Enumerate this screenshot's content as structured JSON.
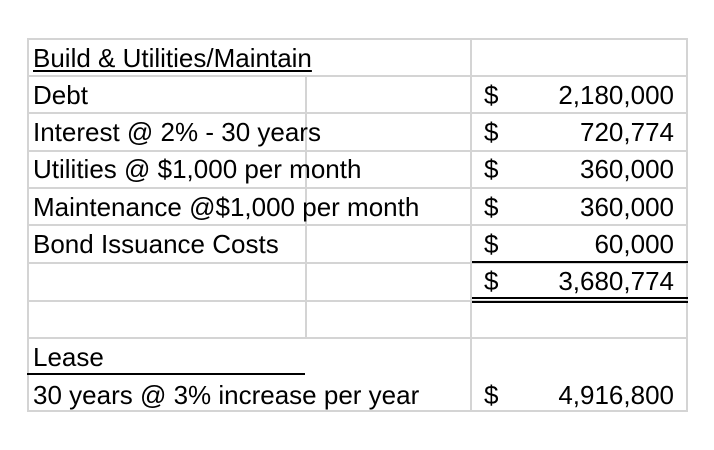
{
  "table": {
    "header": "Build & Utilities/Maintain",
    "rows": [
      {
        "label": "Debt",
        "currency": "$",
        "amount": "2,180,000"
      },
      {
        "label": "Interest @  2% - 30 years",
        "currency": "$",
        "amount": "720,774"
      },
      {
        "label": "Utilities @ $1,000 per month",
        "currency": "$",
        "amount": "360,000"
      },
      {
        "label": "Maintenance @$1,000 per month",
        "currency": "$",
        "amount": "360,000"
      },
      {
        "label": "Bond Issuance Costs",
        "currency": "$",
        "amount": "60,000"
      }
    ],
    "total": {
      "currency": "$",
      "amount": "3,680,774"
    },
    "lease": {
      "header": "Lease",
      "label": "30 years @  3% increase per year",
      "currency": "$",
      "amount": "4,916,800"
    }
  }
}
